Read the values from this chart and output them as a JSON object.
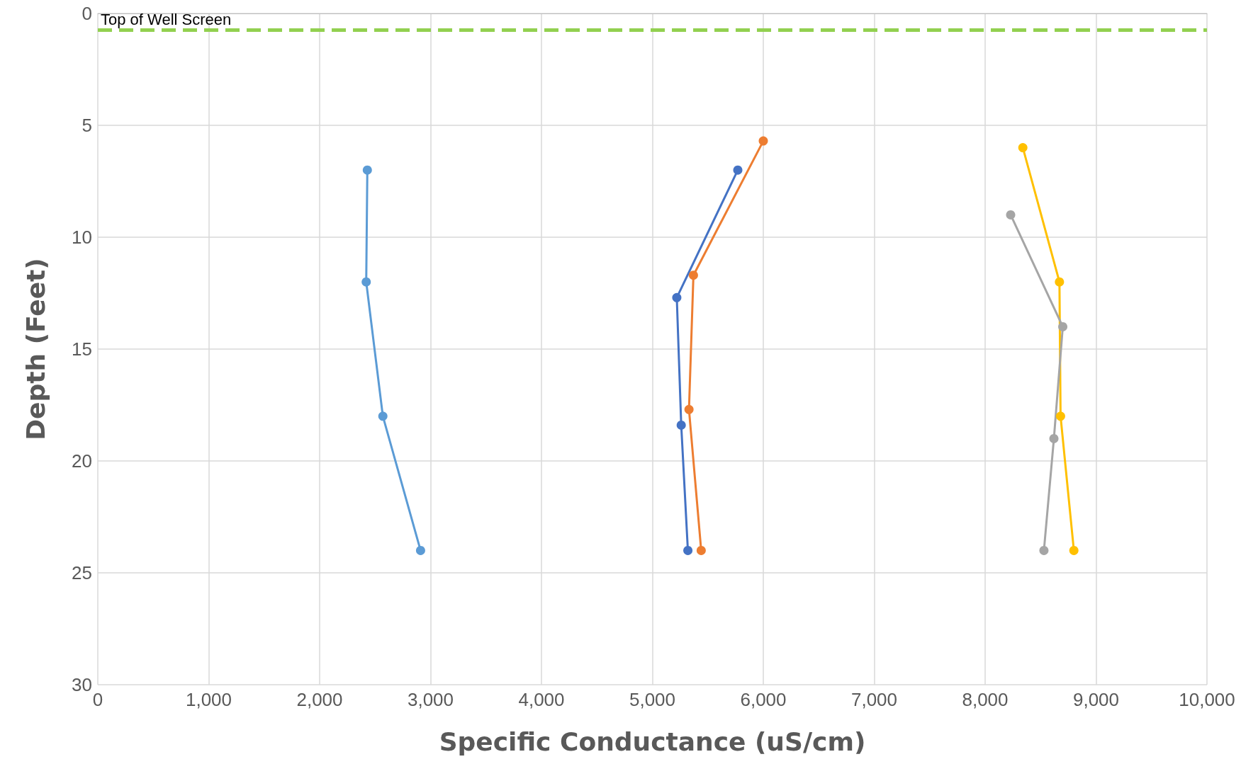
{
  "chart_data": {
    "type": "line",
    "xlabel": "Specific Conductance (uS/cm)",
    "ylabel": "Depth (Feet)",
    "xlim": [
      0,
      10000
    ],
    "xticks": [
      0,
      {
        "value": 1000,
        "label": "1,000"
      },
      {
        "value": 2000,
        "label": "2,000"
      },
      {
        "value": 3000,
        "label": "3,000"
      },
      {
        "value": 4000,
        "label": "4,000"
      },
      {
        "value": 5000,
        "label": "5,000"
      },
      {
        "value": 6000,
        "label": "6,000"
      },
      {
        "value": 7000,
        "label": "7,000"
      },
      {
        "value": 8000,
        "label": "8,000"
      },
      {
        "value": 9000,
        "label": "9,000"
      },
      {
        "value": 10000,
        "label": "10,000"
      }
    ],
    "ylim": [
      30,
      0
    ],
    "yticks": [
      0,
      5,
      10,
      15,
      20,
      25,
      30
    ],
    "grid": true,
    "marker": "circle",
    "line_style": "solid",
    "series": [
      {
        "color": "#5b9bd5",
        "x": [
          2430,
          2420,
          2570,
          2910
        ],
        "values": [
          7,
          12,
          18,
          24
        ]
      },
      {
        "color": "#4472c4",
        "x": [
          5770,
          5220,
          5260,
          5320
        ],
        "values": [
          7,
          12.7,
          18.4,
          24
        ]
      },
      {
        "color": "#ed7d31",
        "x": [
          6000,
          5370,
          5330,
          5440
        ],
        "values": [
          5.7,
          11.7,
          17.7,
          24
        ]
      },
      {
        "color": "#ffc000",
        "x": [
          8340,
          8670,
          8680,
          8800
        ],
        "values": [
          6,
          12,
          18,
          24
        ]
      },
      {
        "color": "#a5a5a5",
        "x": [
          8230,
          8700,
          8620,
          8530
        ],
        "values": [
          9,
          14,
          19,
          24
        ]
      }
    ],
    "ref_lines": [
      {
        "axis": "y",
        "value": 0.75,
        "label": "Top of Well Screen",
        "color": "#92d050",
        "line_style": "dashed"
      }
    ]
  }
}
